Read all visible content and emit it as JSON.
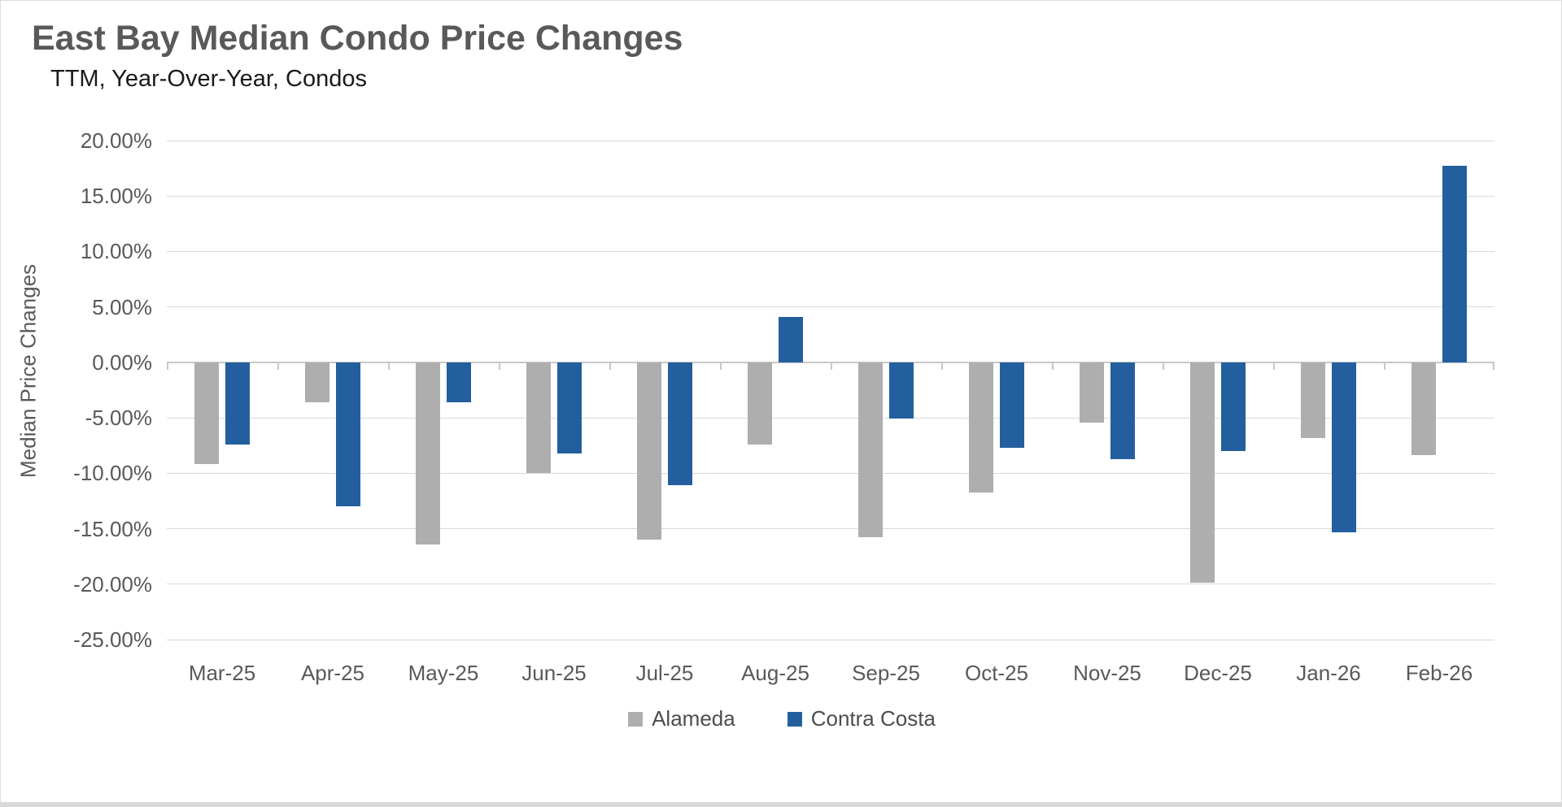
{
  "header": {
    "title": "East Bay Median Condo Price Changes",
    "subtitle": "TTM, Year-Over-Year, Condos"
  },
  "colors": {
    "alameda": "#aeaeae",
    "contra_costa": "#235f9e",
    "gridline": "#d9d9d9",
    "axis_line": "#c8c8c8",
    "title_text": "#595959",
    "subtitle_text": "#1a1a1a",
    "tick_text": "#595959"
  },
  "chart_data": {
    "type": "bar",
    "title": "East Bay Median Condo Price Changes",
    "subtitle": "TTM, Year-Over-Year, Condos",
    "xlabel": "",
    "ylabel": "Median Price Changes",
    "categories": [
      "Mar-25",
      "Apr-25",
      "May-25",
      "Jun-25",
      "Jul-25",
      "Aug-25",
      "Sep-25",
      "Oct-25",
      "Nov-25",
      "Dec-25",
      "Jan-26",
      "Feb-26"
    ],
    "series": [
      {
        "name": "Alameda",
        "color": "#aeaeae",
        "values": [
          -9.2,
          -3.6,
          -16.4,
          -10.0,
          -16.0,
          -7.4,
          -15.8,
          -11.7,
          -5.4,
          -19.9,
          -6.8,
          -8.4
        ]
      },
      {
        "name": "Contra Costa",
        "color": "#235f9e",
        "values": [
          -7.4,
          -13.0,
          -3.6,
          -8.2,
          -11.1,
          4.1,
          -5.1,
          -7.7,
          -8.7,
          -8.0,
          -15.3,
          17.7
        ]
      }
    ],
    "ylim": [
      -25,
      20
    ],
    "ytick_step": 5,
    "ytick_labels": [
      "20.00%",
      "15.00%",
      "10.00%",
      "5.00%",
      "0.00%",
      "-5.00%",
      "-10.00%",
      "-15.00%",
      "-20.00%",
      "-25.00%"
    ],
    "grid": true,
    "legend_position": "bottom",
    "units": "percent"
  },
  "legend": {
    "items": [
      {
        "label": "Alameda"
      },
      {
        "label": "Contra Costa"
      }
    ]
  }
}
